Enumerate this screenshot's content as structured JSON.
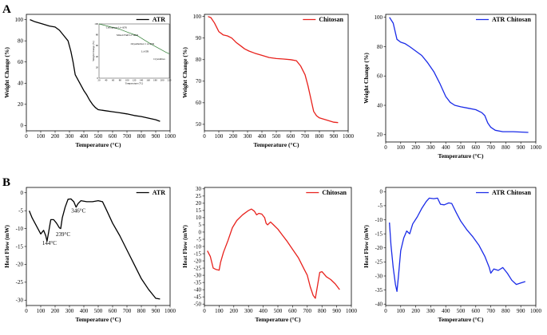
{
  "figure": {
    "panel_labels": [
      "A",
      "B"
    ]
  },
  "chart_data": [
    {
      "id": "tga-atr",
      "type": "line",
      "xlabel": "Temperature (°C)",
      "ylabel": "Weight Change (%)",
      "xlim": [
        0,
        1000
      ],
      "ylim": [
        -5,
        105
      ],
      "xticks": [
        "0",
        "100",
        "200",
        "300",
        "400",
        "500",
        "600",
        "700",
        "800",
        "900",
        "1000"
      ],
      "yticks": [
        "0",
        "20",
        "40",
        "60",
        "80",
        "100"
      ],
      "legend": "ATR",
      "color": "#000000",
      "points": [
        [
          25,
          100
        ],
        [
          60,
          98
        ],
        [
          110,
          96
        ],
        [
          160,
          94
        ],
        [
          200,
          93
        ],
        [
          230,
          90
        ],
        [
          260,
          85
        ],
        [
          290,
          80
        ],
        [
          310,
          70
        ],
        [
          325,
          60
        ],
        [
          340,
          48
        ],
        [
          360,
          43
        ],
        [
          380,
          38
        ],
        [
          400,
          33
        ],
        [
          420,
          29
        ],
        [
          440,
          24
        ],
        [
          460,
          20
        ],
        [
          480,
          17
        ],
        [
          500,
          15
        ],
        [
          550,
          14
        ],
        [
          600,
          13
        ],
        [
          650,
          12
        ],
        [
          700,
          11
        ],
        [
          750,
          9.5
        ],
        [
          800,
          8.5
        ],
        [
          850,
          7
        ],
        [
          900,
          5.5
        ],
        [
          930,
          4
        ]
      ],
      "inset": {
        "xlabel": "Temperature (°C)",
        "ylabel": "Weight Change (%)",
        "xticks": [
          "20",
          "40",
          "60",
          "80",
          "100",
          "120",
          "140",
          "160",
          "180",
          "200",
          "220"
        ],
        "yticks": [
          "0",
          "20",
          "40",
          "60",
          "80",
          "100"
        ],
        "annotations": [
          "Cellophane Li+ATR",
          "Mixed Fluff Li+ATR",
          "Oxyenholizer 1 at ATR",
          "Li ATR",
          "Crystallites"
        ],
        "points": [
          [
            20,
            100
          ],
          [
            50,
            95
          ],
          [
            80,
            90
          ],
          [
            100,
            85
          ],
          [
            130,
            78
          ],
          [
            150,
            70
          ],
          [
            170,
            62
          ],
          [
            190,
            55
          ],
          [
            210,
            48
          ],
          [
            220,
            45
          ]
        ]
      }
    },
    {
      "id": "tga-chitosan",
      "type": "line",
      "xlabel": "Temperature (°C)",
      "ylabel": "Weight Change (%)",
      "xlim": [
        0,
        1000
      ],
      "ylim": [
        47,
        101
      ],
      "xticks": [
        "0",
        "100",
        "200",
        "300",
        "400",
        "500",
        "600",
        "700",
        "800",
        "900",
        "1000"
      ],
      "yticks": [
        "50",
        "60",
        "70",
        "80",
        "90",
        "100"
      ],
      "legend": "Chitosan",
      "color": "#e8211c",
      "points": [
        [
          25,
          100
        ],
        [
          45,
          99.5
        ],
        [
          70,
          97
        ],
        [
          100,
          93
        ],
        [
          130,
          91.5
        ],
        [
          160,
          91
        ],
        [
          190,
          90
        ],
        [
          220,
          88
        ],
        [
          250,
          86.5
        ],
        [
          280,
          85
        ],
        [
          310,
          84
        ],
        [
          350,
          83
        ],
        [
          400,
          82
        ],
        [
          450,
          81
        ],
        [
          500,
          80.5
        ],
        [
          550,
          80.3
        ],
        [
          600,
          80
        ],
        [
          640,
          79.5
        ],
        [
          670,
          77
        ],
        [
          700,
          73
        ],
        [
          720,
          68
        ],
        [
          740,
          62
        ],
        [
          760,
          56
        ],
        [
          780,
          54
        ],
        [
          800,
          53
        ],
        [
          850,
          52
        ],
        [
          900,
          51
        ],
        [
          930,
          50.8
        ]
      ]
    },
    {
      "id": "tga-atr-chitosan",
      "type": "line",
      "xlabel": "Temperature (°C)",
      "ylabel": "Weight Change (%)",
      "xlim": [
        0,
        1000
      ],
      "ylim": [
        15,
        102
      ],
      "xticks": [
        "0",
        "100",
        "200",
        "300",
        "400",
        "500",
        "600",
        "700",
        "800",
        "900",
        "1000"
      ],
      "yticks": [
        "20",
        "40",
        "60",
        "80",
        "100"
      ],
      "legend": "ATR Chitosan",
      "color": "#1a2be8",
      "points": [
        [
          25,
          100
        ],
        [
          50,
          96
        ],
        [
          75,
          85
        ],
        [
          100,
          83
        ],
        [
          130,
          82
        ],
        [
          160,
          80
        ],
        [
          200,
          77
        ],
        [
          240,
          74
        ],
        [
          280,
          69
        ],
        [
          320,
          63
        ],
        [
          360,
          55
        ],
        [
          400,
          46
        ],
        [
          430,
          42
        ],
        [
          460,
          40
        ],
        [
          500,
          39
        ],
        [
          550,
          38
        ],
        [
          600,
          37
        ],
        [
          640,
          35
        ],
        [
          660,
          33
        ],
        [
          680,
          28
        ],
        [
          700,
          25
        ],
        [
          730,
          23
        ],
        [
          780,
          22
        ],
        [
          850,
          22
        ],
        [
          950,
          21.5
        ]
      ]
    },
    {
      "id": "dsc-atr",
      "type": "line",
      "xlabel": "Temperature (°C)",
      "ylabel": "Heat Flow (mW)",
      "xlim": [
        0,
        1000
      ],
      "ylim": [
        -31.5,
        1.5
      ],
      "xticks": [
        "0",
        "100",
        "200",
        "300",
        "400",
        "500",
        "600",
        "700",
        "800",
        "900",
        "1000"
      ],
      "yticks": [
        "0",
        "-5",
        "-10",
        "-15",
        "-20",
        "-25",
        "-30"
      ],
      "legend": "ATR",
      "color": "#000000",
      "annotations": [
        {
          "label": "144°C",
          "x": 144,
          "y": -13
        },
        {
          "label": "239°C",
          "x": 239,
          "y": -10.5
        },
        {
          "label": "346°C",
          "x": 346,
          "y": -4
        }
      ],
      "points": [
        [
          20,
          -5
        ],
        [
          40,
          -7
        ],
        [
          60,
          -8.5
        ],
        [
          80,
          -10
        ],
        [
          100,
          -11.5
        ],
        [
          120,
          -10.5
        ],
        [
          135,
          -12
        ],
        [
          144,
          -13.5
        ],
        [
          155,
          -11
        ],
        [
          170,
          -7.5
        ],
        [
          190,
          -7.5
        ],
        [
          210,
          -8.5
        ],
        [
          230,
          -9.8
        ],
        [
          239,
          -10
        ],
        [
          250,
          -7
        ],
        [
          270,
          -4
        ],
        [
          290,
          -1.8
        ],
        [
          310,
          -1.7
        ],
        [
          330,
          -2.5
        ],
        [
          346,
          -4
        ],
        [
          360,
          -3
        ],
        [
          380,
          -2.2
        ],
        [
          420,
          -2.5
        ],
        [
          460,
          -2.5
        ],
        [
          500,
          -2.2
        ],
        [
          530,
          -2.5
        ],
        [
          560,
          -5
        ],
        [
          600,
          -8.5
        ],
        [
          650,
          -12
        ],
        [
          700,
          -16
        ],
        [
          750,
          -20
        ],
        [
          800,
          -24
        ],
        [
          850,
          -27
        ],
        [
          880,
          -28.5
        ],
        [
          900,
          -29.5
        ],
        [
          930,
          -29.7
        ]
      ]
    },
    {
      "id": "dsc-chitosan",
      "type": "line",
      "xlabel": "Temperature (°C)",
      "ylabel": "Heat Flow (mW)",
      "xlim": [
        0,
        1000
      ],
      "ylim": [
        -51,
        31
      ],
      "xticks": [
        "0",
        "100",
        "200",
        "300",
        "400",
        "500",
        "600",
        "700",
        "800",
        "900",
        "1000"
      ],
      "yticks": [
        "30",
        "25",
        "20",
        "15",
        "10",
        "5",
        "0",
        "-5",
        "-10",
        "-15",
        "-20",
        "-25",
        "-30",
        "-35",
        "-40",
        "-45",
        "-50"
      ],
      "legend": "Chitosan",
      "color": "#e8211c",
      "points": [
        [
          20,
          -13
        ],
        [
          40,
          -17
        ],
        [
          60,
          -25
        ],
        [
          80,
          -26
        ],
        [
          100,
          -26.5
        ],
        [
          110,
          -21
        ],
        [
          130,
          -14
        ],
        [
          160,
          -6
        ],
        [
          190,
          3
        ],
        [
          220,
          8
        ],
        [
          260,
          12
        ],
        [
          300,
          15
        ],
        [
          320,
          16
        ],
        [
          340,
          14.5
        ],
        [
          355,
          12
        ],
        [
          370,
          13
        ],
        [
          390,
          12.5
        ],
        [
          410,
          10
        ],
        [
          420,
          6
        ],
        [
          430,
          5
        ],
        [
          450,
          7
        ],
        [
          470,
          5
        ],
        [
          500,
          2
        ],
        [
          530,
          -2
        ],
        [
          560,
          -6
        ],
        [
          600,
          -12
        ],
        [
          640,
          -18
        ],
        [
          680,
          -26
        ],
        [
          700,
          -30
        ],
        [
          720,
          -38
        ],
        [
          740,
          -44
        ],
        [
          755,
          -46
        ],
        [
          770,
          -37
        ],
        [
          785,
          -28
        ],
        [
          800,
          -27.5
        ],
        [
          830,
          -31
        ],
        [
          860,
          -33
        ],
        [
          890,
          -36
        ],
        [
          920,
          -40
        ]
      ]
    },
    {
      "id": "dsc-atr-chitosan",
      "type": "line",
      "xlabel": "Temperature (°C)",
      "ylabel": "Heat Flow (mW)",
      "xlim": [
        0,
        1000
      ],
      "ylim": [
        -40.5,
        1.5
      ],
      "xticks": [
        "0",
        "100",
        "200",
        "300",
        "400",
        "500",
        "600",
        "700",
        "800",
        "900",
        "1000"
      ],
      "yticks": [
        "0",
        "-5",
        "-10",
        "-15",
        "-20",
        "-25",
        "-30",
        "-35",
        "-40"
      ],
      "legend": "ATR Chitosan",
      "color": "#1a2be8",
      "points": [
        [
          25,
          -11
        ],
        [
          35,
          -19
        ],
        [
          50,
          -27
        ],
        [
          65,
          -33
        ],
        [
          75,
          -35.5
        ],
        [
          85,
          -30
        ],
        [
          100,
          -21
        ],
        [
          120,
          -16.5
        ],
        [
          140,
          -14
        ],
        [
          160,
          -15
        ],
        [
          180,
          -11.5
        ],
        [
          210,
          -9
        ],
        [
          240,
          -6
        ],
        [
          270,
          -3.5
        ],
        [
          290,
          -2.3
        ],
        [
          320,
          -2.5
        ],
        [
          345,
          -2.3
        ],
        [
          365,
          -4.5
        ],
        [
          390,
          -4.7
        ],
        [
          420,
          -4
        ],
        [
          440,
          -4.2
        ],
        [
          470,
          -7.5
        ],
        [
          500,
          -10.5
        ],
        [
          540,
          -13.5
        ],
        [
          580,
          -16
        ],
        [
          620,
          -19
        ],
        [
          660,
          -23
        ],
        [
          690,
          -27
        ],
        [
          700,
          -29
        ],
        [
          720,
          -27.5
        ],
        [
          750,
          -28
        ],
        [
          780,
          -27
        ],
        [
          810,
          -29
        ],
        [
          840,
          -31.5
        ],
        [
          870,
          -33
        ],
        [
          900,
          -32.5
        ],
        [
          930,
          -32
        ]
      ]
    }
  ]
}
